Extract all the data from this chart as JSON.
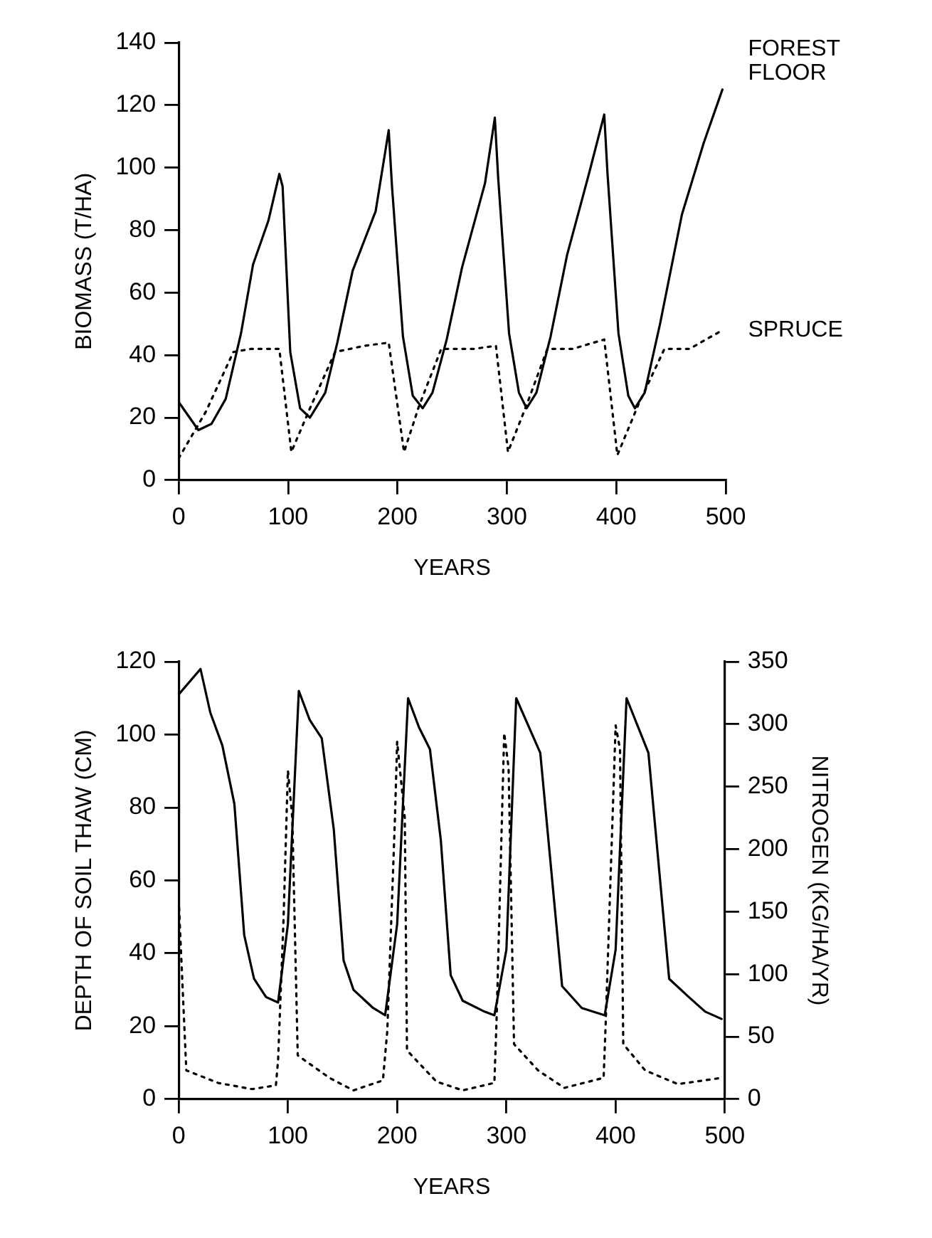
{
  "chart_data": [
    {
      "type": "line",
      "xlabel": "YEARS",
      "ylabel": "BIOMASS (T/HA)",
      "xlim": [
        0,
        500
      ],
      "xticks": [
        0,
        100,
        200,
        300,
        400,
        500
      ],
      "ylim": [
        0,
        140
      ],
      "yticks": [
        0,
        20,
        40,
        60,
        80,
        100,
        120,
        140
      ],
      "legend": false,
      "marker": "none",
      "series": [
        {
          "name": "FOREST FLOOR",
          "color": "#000000",
          "line_style": "solid",
          "x": [
            0,
            18,
            30,
            43,
            57,
            68,
            82,
            92,
            95,
            102,
            111,
            120,
            134,
            145,
            159,
            180,
            192,
            195,
            205,
            214,
            223,
            232,
            245,
            259,
            280,
            289,
            292,
            302,
            311,
            318,
            327,
            340,
            355,
            375,
            389,
            392,
            402,
            411,
            417,
            426,
            440,
            460,
            480,
            497
          ],
          "values": [
            25,
            16,
            18,
            26,
            47,
            69,
            83,
            98,
            94,
            41,
            23,
            20,
            28,
            44,
            67,
            86,
            112,
            94,
            46,
            27,
            23,
            28,
            45,
            68,
            95,
            116,
            97,
            47,
            28,
            23,
            28,
            46,
            72,
            98,
            117,
            98,
            47,
            27,
            23,
            28,
            50,
            85,
            108,
            125
          ]
        },
        {
          "name": "SPRUCE",
          "color": "#000000",
          "line_style": "dotted",
          "x": [
            0,
            25,
            50,
            66,
            92,
            103,
            120,
            143,
            170,
            192,
            206,
            220,
            240,
            270,
            290,
            301,
            318,
            337,
            360,
            389,
            401,
            420,
            444,
            467,
            497
          ],
          "values": [
            7,
            22,
            41,
            42,
            42,
            9,
            23,
            41,
            43,
            44,
            9,
            24,
            42,
            42,
            43,
            9,
            24,
            42,
            42,
            45,
            8,
            24,
            42,
            42,
            48
          ]
        }
      ]
    },
    {
      "type": "line",
      "xlabel": "YEARS",
      "ylabel": "DEPTH OF SOIL THAW (CM)",
      "y2label": "NITROGEN (KG/HA/YR)",
      "xlim": [
        0,
        500
      ],
      "xticks": [
        0,
        100,
        200,
        300,
        400,
        500
      ],
      "ylim": [
        0,
        120
      ],
      "yticks": [
        0,
        20,
        40,
        60,
        80,
        100,
        120
      ],
      "y2lim": [
        0,
        350
      ],
      "y2ticks": [
        0,
        50,
        100,
        150,
        200,
        250,
        300,
        350
      ],
      "legend": false,
      "marker": "none",
      "series": [
        {
          "color": "#000000",
          "line_style": "solid",
          "x": [
            0,
            20,
            29,
            40,
            51,
            60,
            69,
            80,
            91,
            100,
            110,
            120,
            131,
            142,
            151,
            160,
            178,
            189,
            200,
            210,
            220,
            230,
            240,
            249,
            260,
            280,
            289,
            300,
            309,
            331,
            351,
            369,
            390,
            400,
            410,
            430,
            449,
            467,
            482,
            497
          ],
          "values": [
            111,
            118,
            106,
            97,
            81,
            45,
            33,
            28,
            26.5,
            48,
            112,
            104,
            99,
            74,
            38,
            30,
            25,
            23,
            48,
            110,
            102,
            96,
            71,
            34,
            27,
            24,
            23,
            41,
            110,
            95,
            31,
            25,
            23,
            41,
            110,
            95,
            33,
            28,
            24,
            22
          ]
        },
        {
          "color": "#000000",
          "line_style": "dotted",
          "axis": "y2",
          "x": [
            0,
            7,
            36,
            67,
            89,
            91,
            96,
            100,
            104,
            109,
            138,
            160,
            187,
            191,
            198,
            200,
            207,
            209,
            236,
            260,
            289,
            291,
            298,
            302,
            307,
            329,
            353,
            389,
            391,
            400,
            404,
            407,
            427,
            457,
            497
          ],
          "values": [
            160,
            23,
            13,
            8,
            11,
            31,
            144,
            263,
            225,
            35,
            17,
            7,
            15,
            55,
            225,
            286,
            225,
            39,
            14,
            7,
            13,
            63,
            293,
            265,
            44,
            23,
            9,
            17,
            63,
            299,
            280,
            44,
            23,
            12,
            17
          ]
        }
      ]
    }
  ]
}
